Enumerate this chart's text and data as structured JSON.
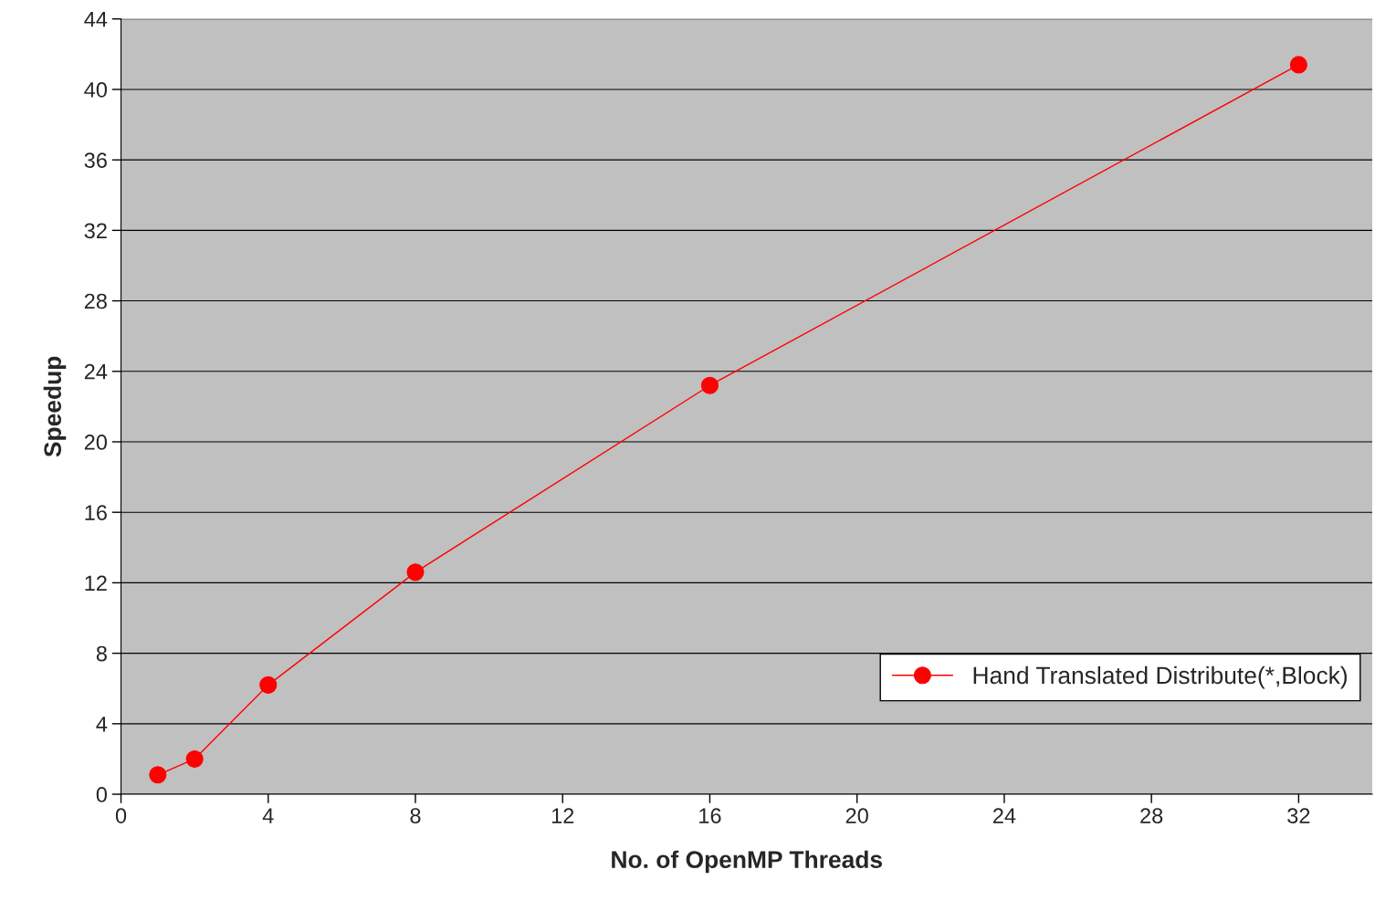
{
  "chart_data": {
    "type": "line",
    "xlabel": "No. of OpenMP Threads",
    "ylabel": "Speedup",
    "x": [
      1,
      2,
      4,
      8,
      16,
      32
    ],
    "series": [
      {
        "name": "Hand Translated Distribute(*,Block)",
        "color": "#ff0000",
        "values": [
          1.1,
          2.0,
          6.2,
          12.6,
          23.2,
          41.4
        ]
      }
    ],
    "xlim": [
      0,
      34
    ],
    "xticks": [
      0,
      4,
      8,
      12,
      16,
      20,
      24,
      28,
      32
    ],
    "ylim": [
      0,
      44
    ],
    "yticks": [
      0,
      4,
      8,
      12,
      16,
      20,
      24,
      28,
      32,
      36,
      40,
      44
    ],
    "grid": "y",
    "legend": "bottom right",
    "marker": "circle",
    "line_style": "solid"
  }
}
